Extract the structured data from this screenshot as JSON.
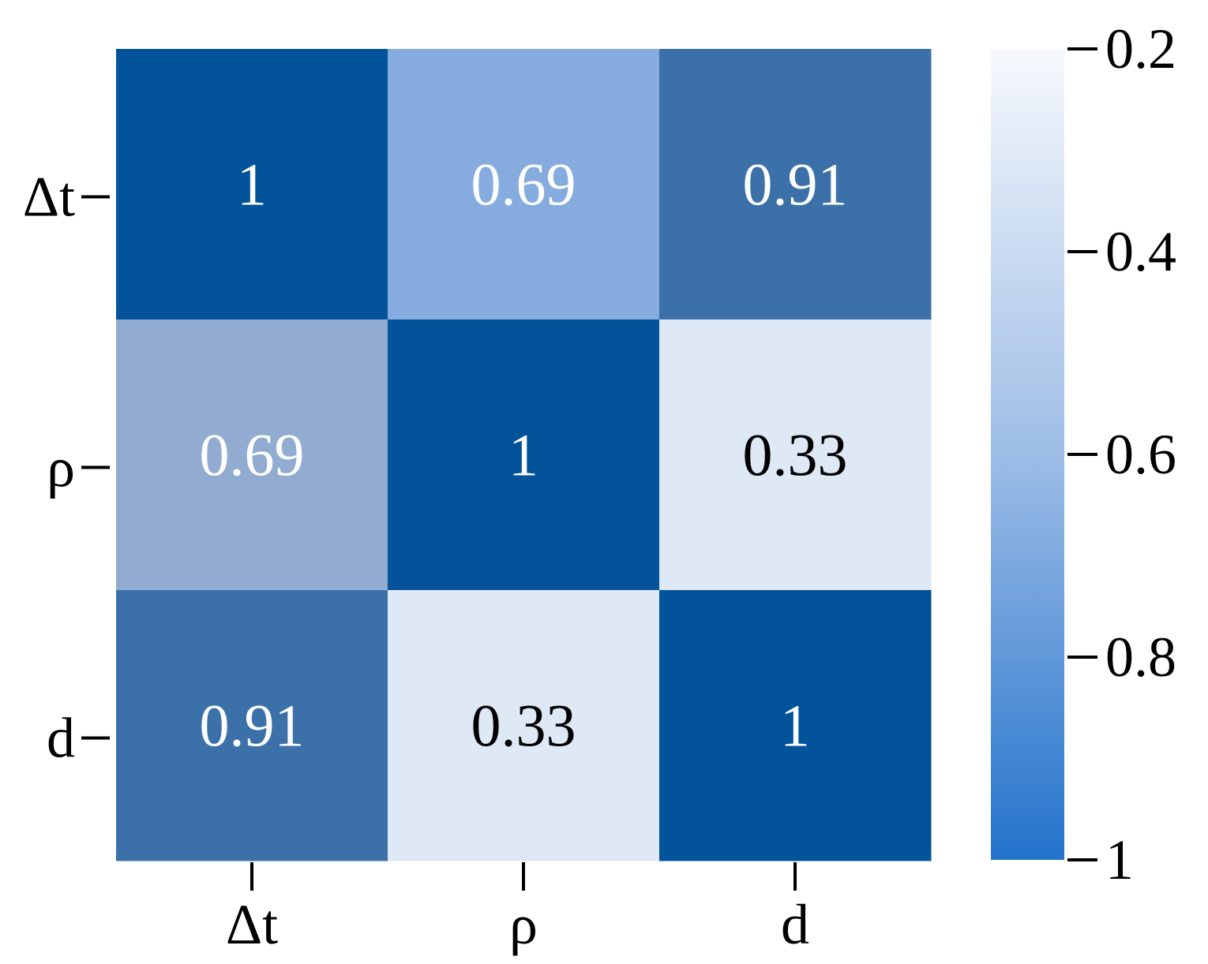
{
  "chart_data": {
    "type": "heatmap",
    "title": "",
    "xlabel": "",
    "ylabel": "",
    "x_categories": [
      "Δt",
      "ρ",
      "d"
    ],
    "y_categories": [
      "Δt",
      "ρ",
      "d"
    ],
    "values": [
      [
        1,
        0.69,
        0.91
      ],
      [
        0.69,
        1,
        0.33
      ],
      [
        0.91,
        0.33,
        1
      ]
    ],
    "cell_labels": [
      [
        "1",
        "0.69",
        "0.91"
      ],
      [
        "0.69",
        "1",
        "0.33"
      ],
      [
        "0.91",
        "0.33",
        "1"
      ]
    ],
    "cell_colors": [
      [
        "#02539a",
        "#86acdf",
        "#3b71a8"
      ],
      [
        "#91acd0",
        "#02539a",
        "#dfe8f5"
      ],
      [
        "#3b71a8",
        "#dfe8f5",
        "#02539a"
      ]
    ],
    "label_text_colors": {
      "dark_cell": "#ffffff",
      "light_cell": "#000000"
    },
    "colorbar": {
      "ticks": [
        0.2,
        0.4,
        0.6,
        0.8,
        1
      ],
      "tick_labels": [
        "0.2",
        "0.4",
        "0.6",
        "0.8",
        "1"
      ],
      "range": [
        0.2,
        1
      ],
      "orientation": "vertical",
      "position": "right",
      "color_low": "#f7f9fd",
      "color_mid": "#9dbde6",
      "color_high": "#2373cc"
    }
  }
}
